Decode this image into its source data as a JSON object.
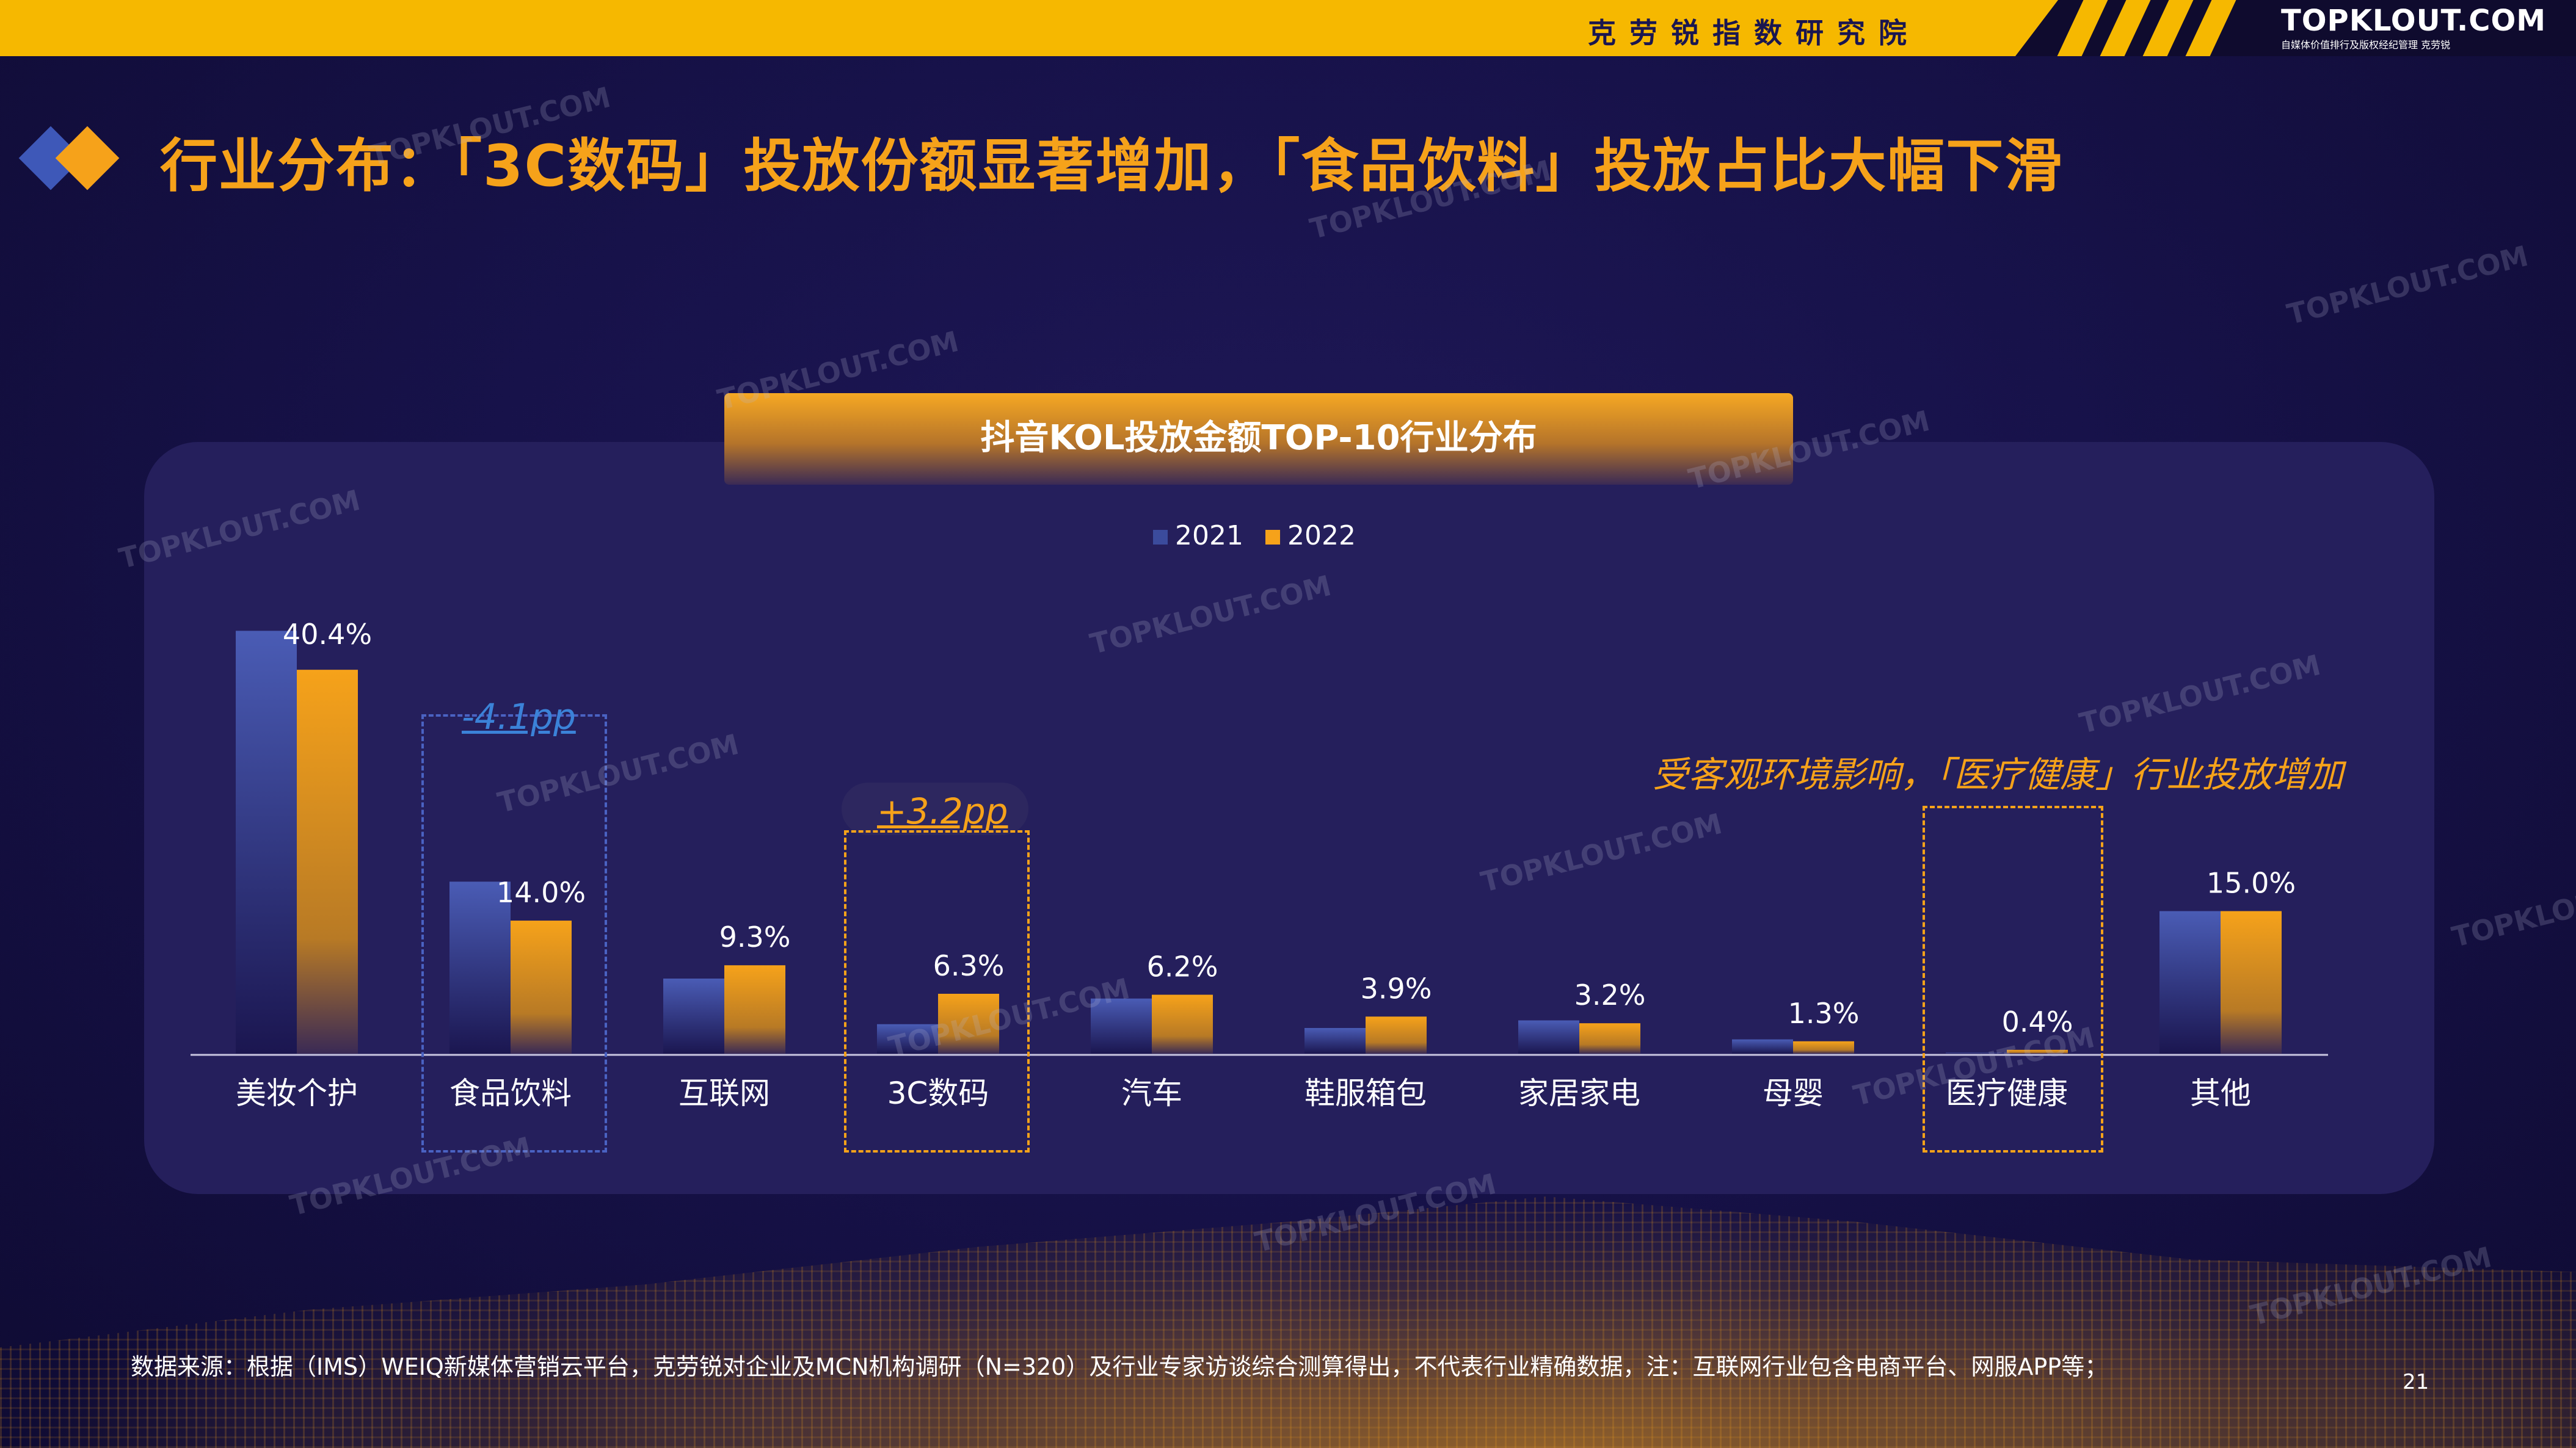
{
  "header": {
    "org_name": "克劳锐指数研究院",
    "brand": "TOPKLOUT.COM",
    "brand_sub": "自媒体价值排行及版权经纪管理",
    "brand_cn": "克劳锐"
  },
  "title": "行业分布：「3C数码」投放份额显著增加，「食品饮料」投放占比大幅下滑",
  "chart_data": {
    "type": "bar",
    "title": "抖音KOL投放金额TOP-10行业分布",
    "categories": [
      "美妆个护",
      "食品饮料",
      "互联网",
      "3C数码",
      "汽车",
      "鞋服箱包",
      "家居家电",
      "母婴",
      "医疗健康",
      "其他"
    ],
    "series": [
      {
        "name": "2021",
        "values": [
          44.5,
          18.1,
          7.9,
          3.1,
          5.8,
          2.7,
          3.5,
          1.5,
          0.1,
          15.0
        ],
        "color": "#3b4b9c"
      },
      {
        "name": "2022",
        "values": [
          40.4,
          14.0,
          9.3,
          6.3,
          6.2,
          3.9,
          3.2,
          1.3,
          0.4,
          15.0
        ],
        "color": "#f6a21a"
      }
    ],
    "data_labels": [
      "40.4%",
      "14.0%",
      "9.3%",
      "6.3%",
      "6.2%",
      "3.9%",
      "3.2%",
      "1.3%",
      "0.4%",
      "15.0%"
    ],
    "ylim": [
      0,
      46
    ],
    "legend_position": "top-center",
    "grid": false,
    "annotations": {
      "food": "-4.1pp",
      "digital": "+3.2pp",
      "health_note": "受客观环境影响，「医疗健康」行业投放增加"
    }
  },
  "footer": {
    "source": "数据来源：根据（IMS）WEIQ新媒体营销云平台，克劳锐对企业及MCN机构调研（N=320）及行业专家访谈综合测算得出，不代表行业精确数据，注：互联网行业包含电商平台、网服APP等；",
    "page": "21"
  },
  "watermark": "TOPKLOUT.COM",
  "colors": {
    "accent": "#f6a21a",
    "banner": "#f6b800",
    "series2021": "#3b4b9c",
    "background": "#17124a"
  }
}
